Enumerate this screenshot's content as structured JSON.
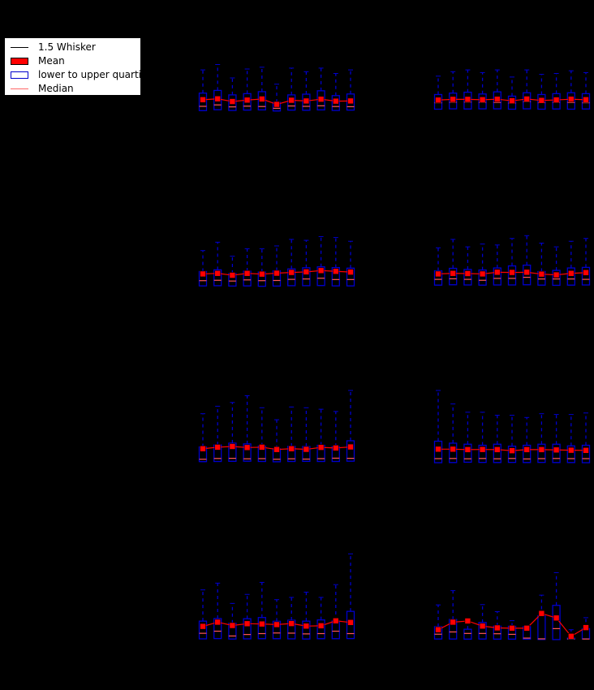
{
  "legend": {
    "items": [
      {
        "label": "1.5 Whisker",
        "kind": "line",
        "color": "#000000"
      },
      {
        "label": "Mean",
        "kind": "fill",
        "color": "#ff0000"
      },
      {
        "label": "lower to upper quartile",
        "kind": "box",
        "color": "#0000cc"
      },
      {
        "label": "Median",
        "kind": "line",
        "color": "#ff6666"
      }
    ]
  },
  "colors": {
    "background": "#000000",
    "box": "#0000cc",
    "whisker": "#0000cc",
    "mean": "#ff0000",
    "median": "#ff5555"
  },
  "chart_data": [
    {
      "type": "box",
      "panel": "row1-left",
      "q1": [
        -0.83,
        -0.78,
        -0.82,
        -0.8,
        -0.79,
        -0.85,
        -0.8,
        -0.81,
        -0.79,
        -0.82,
        -0.8
      ],
      "median": [
        -0.59,
        -0.51,
        -0.62,
        -0.58,
        -0.6,
        -0.7,
        -0.57,
        -0.59,
        -0.56,
        -0.6,
        -0.61
      ],
      "q3": [
        0.15,
        0.3,
        0.05,
        0.12,
        0.23,
        -0.37,
        0.05,
        0.09,
        0.28,
        0.01,
        0.1
      ],
      "mean": [
        -0.22,
        -0.17,
        -0.32,
        -0.24,
        -0.18,
        -0.48,
        -0.25,
        -0.29,
        -0.19,
        -0.3,
        -0.29
      ],
      "whisker_low": [
        -0.83,
        -0.78,
        -0.82,
        -0.8,
        -0.79,
        -0.85,
        -0.8,
        -0.81,
        -0.79,
        -0.82,
        -0.8
      ],
      "whisker_high": [
        1.45,
        1.75,
        1.0,
        1.5,
        1.6,
        0.65,
        1.55,
        1.35,
        1.55,
        1.25,
        1.45
      ]
    },
    {
      "type": "box",
      "panel": "row1-right",
      "q1": [
        -0.75,
        -0.73,
        -0.74,
        -0.73,
        -0.73,
        -0.75,
        -0.73,
        -0.75,
        -0.74,
        -0.75,
        -0.74
      ],
      "median": [
        -0.39,
        -0.36,
        -0.35,
        -0.37,
        -0.37,
        -0.41,
        -0.33,
        -0.39,
        -0.37,
        -0.37,
        -0.39
      ],
      "q3": [
        0.07,
        0.15,
        0.2,
        0.1,
        0.22,
        -0.02,
        0.17,
        0.07,
        0.12,
        0.17,
        0.12
      ],
      "mean": [
        -0.24,
        -0.2,
        -0.2,
        -0.22,
        -0.19,
        -0.28,
        -0.18,
        -0.26,
        -0.23,
        -0.19,
        -0.22
      ],
      "whisker_low": [
        -0.75,
        -0.73,
        -0.74,
        -0.73,
        -0.73,
        -0.75,
        -0.73,
        -0.75,
        -0.74,
        -0.75,
        -0.74
      ],
      "whisker_high": [
        1.1,
        1.35,
        1.45,
        1.3,
        1.45,
        1.05,
        1.45,
        1.2,
        1.25,
        1.4,
        1.3
      ]
    },
    {
      "type": "box",
      "panel": "row2-left",
      "q1": [
        -0.79,
        -0.78,
        -0.8,
        -0.79,
        -0.81,
        -0.8,
        -0.78,
        -0.78,
        -0.77,
        -0.79,
        -0.79
      ],
      "median": [
        -0.51,
        -0.49,
        -0.53,
        -0.47,
        -0.51,
        -0.5,
        -0.44,
        -0.42,
        -0.38,
        -0.45,
        -0.45
      ],
      "q3": [
        -0.02,
        0.07,
        -0.13,
        0.0,
        -0.05,
        0.02,
        0.12,
        0.18,
        0.23,
        0.19,
        0.16
      ],
      "mean": [
        -0.15,
        -0.12,
        -0.22,
        -0.12,
        -0.16,
        -0.11,
        -0.07,
        -0.04,
        0.03,
        -0.01,
        -0.05
      ],
      "whisker_low": [
        -0.79,
        -0.78,
        -0.8,
        -0.79,
        -0.81,
        -0.8,
        -0.78,
        -0.78,
        -0.77,
        -0.79,
        -0.79
      ],
      "whisker_high": [
        1.1,
        1.55,
        0.8,
        1.2,
        1.2,
        1.35,
        1.7,
        1.65,
        1.85,
        1.8,
        1.6
      ]
    },
    {
      "type": "box",
      "panel": "row2-right",
      "q1": [
        -0.75,
        -0.73,
        -0.74,
        -0.75,
        -0.74,
        -0.74,
        -0.73,
        -0.75,
        -0.76,
        -0.75,
        -0.74
      ],
      "median": [
        -0.44,
        -0.41,
        -0.44,
        -0.49,
        -0.39,
        -0.39,
        -0.33,
        -0.42,
        -0.42,
        -0.42,
        -0.44
      ],
      "q3": [
        0.02,
        0.15,
        0.09,
        0.06,
        0.17,
        0.28,
        0.32,
        -0.02,
        0.04,
        0.17,
        0.2
      ],
      "mean": [
        -0.15,
        -0.12,
        -0.13,
        -0.15,
        -0.06,
        -0.07,
        -0.06,
        -0.16,
        -0.2,
        -0.12,
        -0.08
      ],
      "whisker_low": [
        -0.75,
        -0.73,
        -0.74,
        -0.75,
        -0.74,
        -0.74,
        -0.73,
        -0.75,
        -0.76,
        -0.75,
        -0.74
      ],
      "whisker_high": [
        1.25,
        1.7,
        1.3,
        1.45,
        1.4,
        1.75,
        1.9,
        1.5,
        1.3,
        1.6,
        1.75
      ]
    },
    {
      "type": "box",
      "panel": "row3-left",
      "q1": [
        -0.74,
        -0.73,
        -0.72,
        -0.71,
        -0.73,
        -0.75,
        -0.73,
        -0.72,
        -0.73,
        -0.73,
        -0.71
      ],
      "median": [
        -0.58,
        -0.53,
        -0.52,
        -0.55,
        -0.54,
        -0.58,
        -0.55,
        -0.57,
        -0.54,
        -0.51,
        -0.52
      ],
      "q3": [
        0.24,
        0.37,
        0.49,
        0.44,
        0.3,
        0.12,
        0.28,
        0.27,
        0.35,
        0.26,
        0.65
      ],
      "mean": [
        0.12,
        0.22,
        0.27,
        0.2,
        0.22,
        0.07,
        0.12,
        0.08,
        0.21,
        0.17,
        0.24
      ],
      "whisker_low": [
        -0.74,
        -0.73,
        -0.72,
        -0.71,
        -0.73,
        -0.75,
        -0.73,
        -0.72,
        -0.73,
        -0.73,
        -0.71
      ],
      "whisker_high": [
        2.45,
        2.95,
        3.2,
        3.65,
        2.85,
        2.05,
        2.9,
        2.85,
        2.75,
        2.6,
        4.0
      ]
    },
    {
      "type": "box",
      "panel": "row3-right",
      "q1": [
        -0.81,
        -0.8,
        -0.78,
        -0.79,
        -0.8,
        -0.79,
        -0.8,
        -0.79,
        -0.8,
        -0.8,
        -0.81
      ],
      "median": [
        -0.54,
        -0.53,
        -0.55,
        -0.53,
        -0.55,
        -0.53,
        -0.56,
        -0.54,
        -0.53,
        -0.54,
        -0.54
      ],
      "q3": [
        0.62,
        0.49,
        0.42,
        0.35,
        0.42,
        0.29,
        0.35,
        0.42,
        0.42,
        0.31,
        0.35
      ],
      "mean": [
        0.09,
        0.09,
        0.06,
        0.07,
        0.06,
        -0.01,
        0.06,
        0.06,
        0.04,
        0.02,
        0.01
      ],
      "whisker_low": [
        -0.81,
        -0.8,
        -0.78,
        -0.79,
        -0.8,
        -0.79,
        -0.8,
        -0.79,
        -0.8,
        -0.8,
        -0.81
      ],
      "whisker_high": [
        4.0,
        3.1,
        2.55,
        2.55,
        2.35,
        2.35,
        2.2,
        2.45,
        2.4,
        2.4,
        2.5
      ]
    },
    {
      "type": "box",
      "panel": "row4-left",
      "q1": [
        -0.81,
        -0.79,
        -0.82,
        -0.81,
        -0.8,
        -0.8,
        -0.81,
        -0.82,
        -0.8,
        -0.8,
        -0.79
      ],
      "median": [
        -0.44,
        -0.3,
        -0.62,
        -0.52,
        -0.46,
        -0.42,
        -0.43,
        -0.48,
        -0.46,
        -0.3,
        -0.46
      ],
      "q3": [
        0.37,
        0.54,
        0.23,
        0.53,
        0.61,
        0.36,
        0.43,
        0.37,
        0.45,
        0.38,
        1.02
      ],
      "mean": [
        0.02,
        0.3,
        0.08,
        0.2,
        0.18,
        0.14,
        0.21,
        0.04,
        0.06,
        0.39,
        0.28
      ],
      "whisker_low": [
        -0.81,
        -0.79,
        -0.82,
        -0.81,
        -0.8,
        -0.8,
        -0.81,
        -0.82,
        -0.8,
        -0.8,
        -0.79
      ],
      "whisker_high": [
        2.45,
        2.9,
        1.55,
        2.15,
        2.95,
        1.8,
        1.95,
        2.3,
        1.95,
        2.8,
        4.85
      ]
    },
    {
      "type": "box",
      "panel": "row4-right",
      "q1": [
        -0.82,
        -0.82,
        -0.83,
        -0.82,
        -0.83,
        -0.83,
        -0.83,
        -0.85,
        -0.86,
        -0.82,
        -0.81
      ],
      "median": [
        -0.5,
        -0.35,
        -0.45,
        -0.45,
        -0.47,
        -0.51,
        -0.76,
        -0.81,
        -0.13,
        -0.82,
        -0.82
      ],
      "q3": [
        0.0,
        0.48,
        -0.17,
        0.28,
        0.04,
        0.03,
        0.0,
        0.73,
        1.42,
        -0.76,
        -0.13
      ],
      "mean": [
        -0.2,
        0.3,
        0.38,
        0.04,
        -0.08,
        -0.1,
        -0.1,
        0.88,
        0.58,
        -0.64,
        -0.06
      ],
      "whisker_low": [
        -0.82,
        -0.82,
        -0.83,
        -0.82,
        -0.83,
        -0.83,
        -0.83,
        -0.85,
        -0.86,
        -0.82,
        -0.81
      ],
      "whisker_high": [
        1.45,
        2.4,
        0.3,
        1.47,
        1.0,
        0.4,
        0.0,
        2.1,
        3.6,
        -0.2,
        0.6
      ]
    }
  ]
}
